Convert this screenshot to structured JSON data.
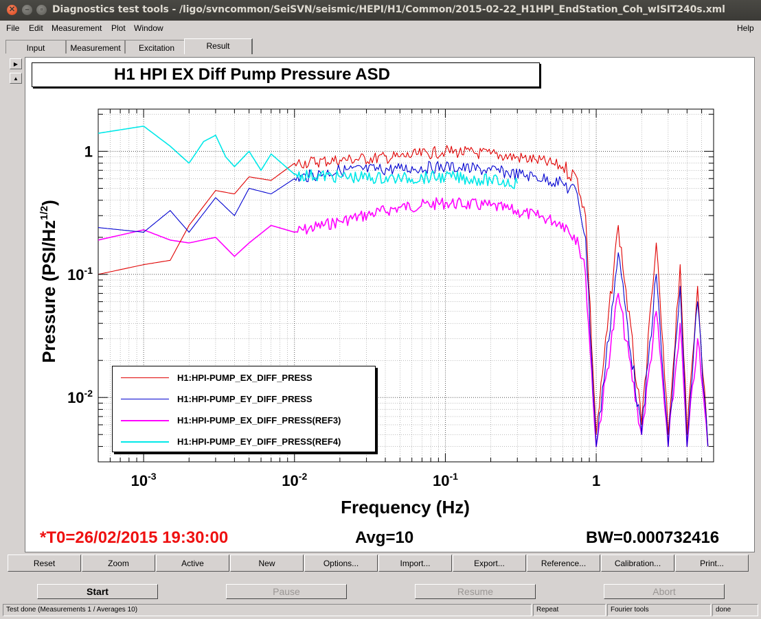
{
  "window": {
    "title": "Diagnostics test tools - /ligo/svncommon/SeiSVN/seismic/HEPI/H1/Common/2015-02-22_H1HPI_EndStation_Coh_wISIT240s.xml"
  },
  "menu": {
    "file": "File",
    "edit": "Edit",
    "measurement": "Measurement",
    "plot": "Plot",
    "window": "Window",
    "help": "Help"
  },
  "tabs": [
    "Input",
    "Measurement",
    "Excitation",
    "Result"
  ],
  "active_tab": "Result",
  "plot": {
    "title": "H1 HPI EX Diff Pump Pressure ASD",
    "t0": "*T0=26/02/2015 19:30:00",
    "avg": "Avg=10",
    "bw": "BW=0.000732416"
  },
  "chart_data": {
    "type": "line",
    "xscale": "log",
    "yscale": "log",
    "xlim": [
      0.0005,
      6
    ],
    "ylim": [
      0.003,
      2.2
    ],
    "xlabel": "Frequency (Hz)",
    "ylabel": "Pressure (PSI/Hz^1/2)",
    "x_ticks": [
      "10-3",
      "10-2",
      "10-1",
      "1"
    ],
    "y_ticks": [
      "10-2",
      "10-1",
      "1"
    ],
    "grid": true,
    "legend_position": "bottom-left",
    "series": [
      {
        "name": "H1:HPI-PUMP_EX_DIFF_PRESS",
        "color": "#e00000",
        "x": [
          0.0005,
          0.001,
          0.0015,
          0.002,
          0.003,
          0.004,
          0.005,
          0.007,
          0.01,
          0.02,
          0.05,
          0.1,
          0.2,
          0.4,
          0.6,
          0.75,
          0.85,
          1.0,
          1.4,
          2.0,
          2.5,
          3.0,
          3.6,
          4.0,
          4.7,
          5.5
        ],
        "y": [
          0.1,
          0.12,
          0.13,
          0.25,
          0.48,
          0.45,
          0.62,
          0.58,
          0.8,
          0.85,
          0.9,
          1.0,
          0.95,
          0.85,
          0.75,
          0.6,
          0.3,
          0.005,
          0.25,
          0.006,
          0.18,
          0.005,
          0.12,
          0.005,
          0.08,
          0.004
        ]
      },
      {
        "name": "H1:HPI-PUMP_EY_DIFF_PRESS",
        "color": "#0000d0",
        "x": [
          0.0005,
          0.001,
          0.0015,
          0.002,
          0.003,
          0.004,
          0.005,
          0.007,
          0.01,
          0.02,
          0.05,
          0.1,
          0.2,
          0.4,
          0.6,
          0.75,
          0.85,
          1.0,
          1.4,
          2.0,
          2.5,
          3.0,
          3.6,
          4.0,
          4.7,
          5.5
        ],
        "y": [
          0.24,
          0.22,
          0.33,
          0.22,
          0.42,
          0.3,
          0.5,
          0.45,
          0.6,
          0.7,
          0.72,
          0.75,
          0.7,
          0.62,
          0.55,
          0.45,
          0.2,
          0.004,
          0.15,
          0.005,
          0.1,
          0.004,
          0.08,
          0.004,
          0.06,
          0.004
        ]
      },
      {
        "name": "H1:HPI-PUMP_EX_DIFF_PRESS(REF3)",
        "color": "#ff00ff",
        "x": [
          0.0005,
          0.001,
          0.0015,
          0.002,
          0.003,
          0.004,
          0.005,
          0.007,
          0.01,
          0.02,
          0.05,
          0.1,
          0.2,
          0.4,
          0.6,
          0.75,
          0.85,
          1.0,
          1.4,
          2.0,
          2.5,
          3.0,
          3.6,
          4.0,
          4.7,
          5.5
        ],
        "y": [
          0.19,
          0.23,
          0.19,
          0.18,
          0.2,
          0.14,
          0.18,
          0.25,
          0.22,
          0.27,
          0.35,
          0.38,
          0.36,
          0.3,
          0.26,
          0.2,
          0.1,
          0.004,
          0.07,
          0.005,
          0.05,
          0.004,
          0.04,
          0.004,
          0.03,
          0.004
        ]
      },
      {
        "name": "H1:HPI-PUMP_EY_DIFF_PRESS(REF4)",
        "color": "#00e8e8",
        "x": [
          0.0005,
          0.001,
          0.0015,
          0.002,
          0.0025,
          0.003,
          0.0035,
          0.004,
          0.005,
          0.006,
          0.007,
          0.01,
          0.02,
          0.05,
          0.1,
          0.2,
          0.3
        ],
        "y": [
          1.4,
          1.6,
          1.1,
          0.8,
          1.2,
          1.35,
          0.9,
          0.75,
          1.0,
          0.7,
          0.95,
          0.65,
          0.62,
          0.6,
          0.62,
          0.58,
          0.55
        ]
      }
    ]
  },
  "toolbar": [
    "Reset",
    "Zoom",
    "Active",
    "New",
    "Options...",
    "Import...",
    "Export...",
    "Reference...",
    "Calibration...",
    "Print..."
  ],
  "controls": {
    "start": "Start",
    "pause": "Pause",
    "resume": "Resume",
    "abort": "Abort"
  },
  "statusbar": {
    "message": "Test done (Measurements 1 / Averages 10)",
    "repeat": "Repeat",
    "tool": "Fourier tools",
    "state": "done"
  }
}
